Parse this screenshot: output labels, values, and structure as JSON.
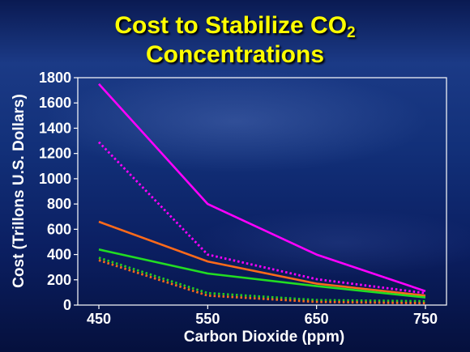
{
  "chart_data": {
    "type": "line",
    "title": "Cost to Stabilize CO",
    "title_subscript": "2",
    "title_line2": "Concentrations",
    "xlabel": "Carbon Dioxide (ppm)",
    "ylabel": "Cost (Trillons U.S. Dollars)",
    "x": [
      450,
      550,
      650,
      750
    ],
    "x_tick_labels": [
      "450",
      "550",
      "650",
      "750"
    ],
    "y_ticks": [
      0,
      200,
      400,
      600,
      800,
      1000,
      1200,
      1400,
      1600,
      1800
    ],
    "y_tick_labels": [
      "0",
      "200",
      "400",
      "600",
      "800",
      "1000",
      "1200",
      "1400",
      "1600",
      "1800"
    ],
    "xlim": [
      450,
      750
    ],
    "ylim": [
      0,
      1800
    ],
    "grid": false,
    "legend": "none",
    "series": [
      {
        "values": [
          1750,
          800,
          400,
          110
        ],
        "color": "#ff00ff",
        "style": "solid"
      },
      {
        "values": [
          1290,
          400,
          205,
          95
        ],
        "color": "#ff00ff",
        "style": "dotted"
      },
      {
        "values": [
          660,
          345,
          170,
          75
        ],
        "color": "#ff6a1a",
        "style": "solid"
      },
      {
        "values": [
          440,
          250,
          150,
          60
        ],
        "color": "#22dd22",
        "style": "solid"
      },
      {
        "values": [
          375,
          95,
          40,
          30
        ],
        "color": "#22cc22",
        "style": "dotted"
      },
      {
        "values": [
          355,
          75,
          25,
          15
        ],
        "color": "#ff6a1a",
        "style": "dotted"
      }
    ]
  }
}
